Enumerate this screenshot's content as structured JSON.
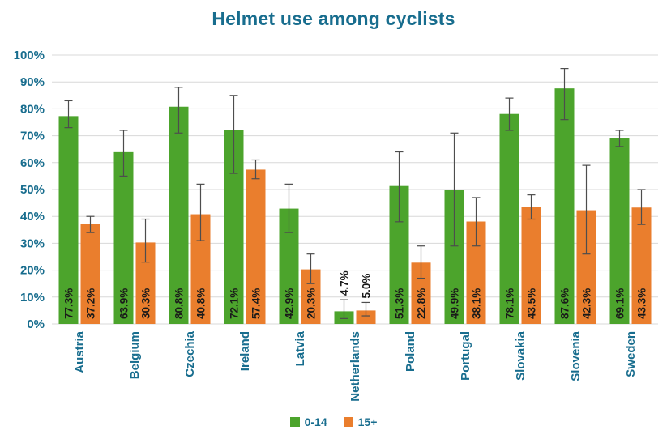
{
  "colors": {
    "title_text": "#186d8e",
    "axis_text": "#186d8e",
    "data_label": "#1a1a1a",
    "grid": "#d8d8d8",
    "error_bar": "#4d4d4d",
    "background": "#ffffff"
  },
  "chart_data": {
    "type": "bar",
    "title": "Helmet use among cyclists",
    "categories": [
      "Austria",
      "Belgium",
      "Czechia",
      "Ireland",
      "Latvia",
      "Netherlands",
      "Poland",
      "Portugal",
      "Slovakia",
      "Slovenia",
      "Sweden"
    ],
    "series": [
      {
        "name": "0-14",
        "color": "#4ca42c",
        "values": [
          77.3,
          63.9,
          80.8,
          72.1,
          42.9,
          4.7,
          51.3,
          49.9,
          78.1,
          87.6,
          69.1
        ],
        "labels": [
          "77.3%",
          "63.9%",
          "80.8%",
          "72.1%",
          "42.9%",
          "4.7%",
          "51.3%",
          "49.9%",
          "78.1%",
          "87.6%",
          "69.1%"
        ],
        "error_low": [
          73,
          55,
          71,
          56,
          34,
          2,
          38,
          29,
          72,
          76,
          66
        ],
        "error_high": [
          83,
          72,
          88,
          85,
          52,
          9,
          64,
          71,
          84,
          95,
          72
        ]
      },
      {
        "name": "15+",
        "color": "#ea7e2d",
        "values": [
          37.2,
          30.3,
          40.8,
          57.4,
          20.3,
          5.0,
          22.8,
          38.1,
          43.5,
          42.3,
          43.3
        ],
        "labels": [
          "37.2%",
          "30.3%",
          "40.8%",
          "57.4%",
          "20.3%",
          "5.0%",
          "22.8%",
          "38.1%",
          "43.5%",
          "42.3%",
          "43.3%"
        ],
        "error_low": [
          34,
          23,
          31,
          54,
          15,
          3,
          17,
          29,
          39,
          26,
          37
        ],
        "error_high": [
          40,
          39,
          52,
          61,
          26,
          8,
          29,
          47,
          48,
          59,
          50
        ]
      }
    ],
    "ylim": [
      0,
      100
    ],
    "ytick_step": 10,
    "ytick_labels": [
      "0%",
      "10%",
      "20%",
      "30%",
      "40%",
      "50%",
      "60%",
      "70%",
      "80%",
      "90%",
      "100%"
    ],
    "xlabel": "",
    "ylabel": "",
    "grid": true,
    "error_bars": true,
    "legend_position": "bottom"
  }
}
